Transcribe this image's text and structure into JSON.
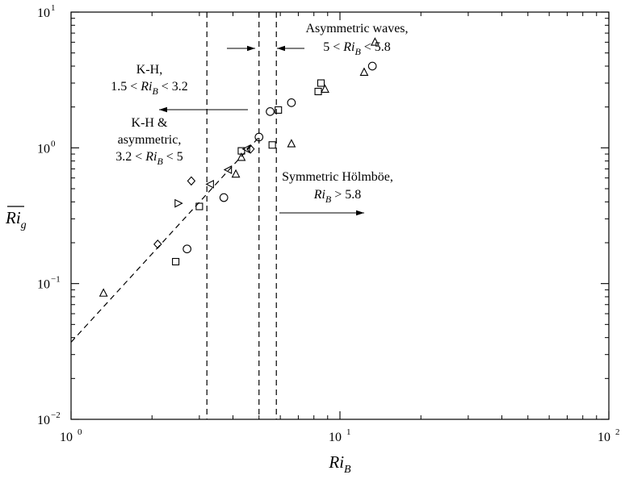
{
  "chart_data": {
    "type": "scatter",
    "title": "",
    "xlabel": "Ri_B",
    "ylabel": "Ri_g (overbar)",
    "x_scale": "log",
    "y_scale": "log",
    "xlim": [
      1,
      100
    ],
    "ylim": [
      0.01,
      10
    ],
    "grid": false,
    "legend": "none",
    "x_ticks": [
      {
        "value": 1,
        "base": "10",
        "exp": "0"
      },
      {
        "value": 10,
        "base": "10",
        "exp": "1"
      },
      {
        "value": 100,
        "base": "10",
        "exp": "2"
      }
    ],
    "y_ticks": [
      {
        "value": 0.01,
        "base": "10",
        "exp": "−2"
      },
      {
        "value": 0.1,
        "base": "10",
        "exp": "−1"
      },
      {
        "value": 1,
        "base": "10",
        "exp": "0"
      },
      {
        "value": 10,
        "base": "10",
        "exp": "1"
      }
    ],
    "fit_line": {
      "style": "dashed",
      "points": [
        [
          1,
          0.037
        ],
        [
          5,
          1.2
        ]
      ]
    },
    "vlines": [
      {
        "x": 3.2,
        "style": "dashed"
      },
      {
        "x": 5.0,
        "style": "dashed"
      },
      {
        "x": 5.8,
        "style": "dashed"
      }
    ],
    "series": [
      {
        "marker": "square",
        "points": [
          [
            2.45,
            0.145
          ],
          [
            3.0,
            0.37
          ],
          [
            4.3,
            0.95
          ],
          [
            5.6,
            1.05
          ],
          [
            5.9,
            1.9
          ],
          [
            8.3,
            2.6
          ],
          [
            8.5,
            3.0
          ]
        ]
      },
      {
        "marker": "circle",
        "points": [
          [
            2.7,
            0.18
          ],
          [
            3.7,
            0.43
          ],
          [
            5.0,
            1.2
          ],
          [
            5.5,
            1.85
          ],
          [
            6.6,
            2.15
          ],
          [
            13.2,
            4.0
          ]
        ]
      },
      {
        "marker": "triangle-up",
        "points": [
          [
            1.32,
            0.085
          ],
          [
            4.1,
            0.64
          ],
          [
            4.3,
            0.85
          ],
          [
            6.6,
            1.07
          ],
          [
            8.8,
            2.7
          ],
          [
            12.3,
            3.6
          ],
          [
            13.5,
            6.0
          ]
        ]
      },
      {
        "marker": "diamond",
        "points": [
          [
            2.1,
            0.195
          ],
          [
            2.8,
            0.57
          ],
          [
            4.65,
            0.98
          ]
        ]
      },
      {
        "marker": "triangle-right",
        "points": [
          [
            2.5,
            0.39
          ]
        ]
      },
      {
        "marker": "triangle-left",
        "points": [
          [
            3.3,
            0.54
          ],
          [
            3.85,
            0.69
          ],
          [
            4.5,
            0.98
          ]
        ]
      }
    ],
    "annotations": [
      {
        "id": "asym",
        "lines": [
          {
            "text": "Asymmetric waves,"
          },
          {
            "text": "5 < ",
            "sym": "Ri",
            "sub": "B",
            "after": " < 5.8"
          }
        ]
      },
      {
        "id": "kh",
        "lines": [
          {
            "text": "K-H,"
          },
          {
            "text": "1.5 < ",
            "sym": "Ri",
            "sub": "B",
            "after": " < 3.2"
          }
        ]
      },
      {
        "id": "kh-asym",
        "lines": [
          {
            "text": "K-H &"
          },
          {
            "text": "asymmetric,"
          },
          {
            "text": "3.2 < ",
            "sym": "Ri",
            "sub": "B",
            "after": " < 5"
          }
        ]
      },
      {
        "id": "holmboe",
        "lines": [
          {
            "text": "Symmetric Hölmböe,"
          },
          {
            "text": "",
            "sym": "Ri",
            "sub": "B",
            "after": " > 5.8"
          }
        ]
      }
    ],
    "axis_labels": {
      "x": {
        "sym": "Ri",
        "sub": "B"
      },
      "y": {
        "sym": "Ri",
        "sub": "g"
      }
    }
  }
}
